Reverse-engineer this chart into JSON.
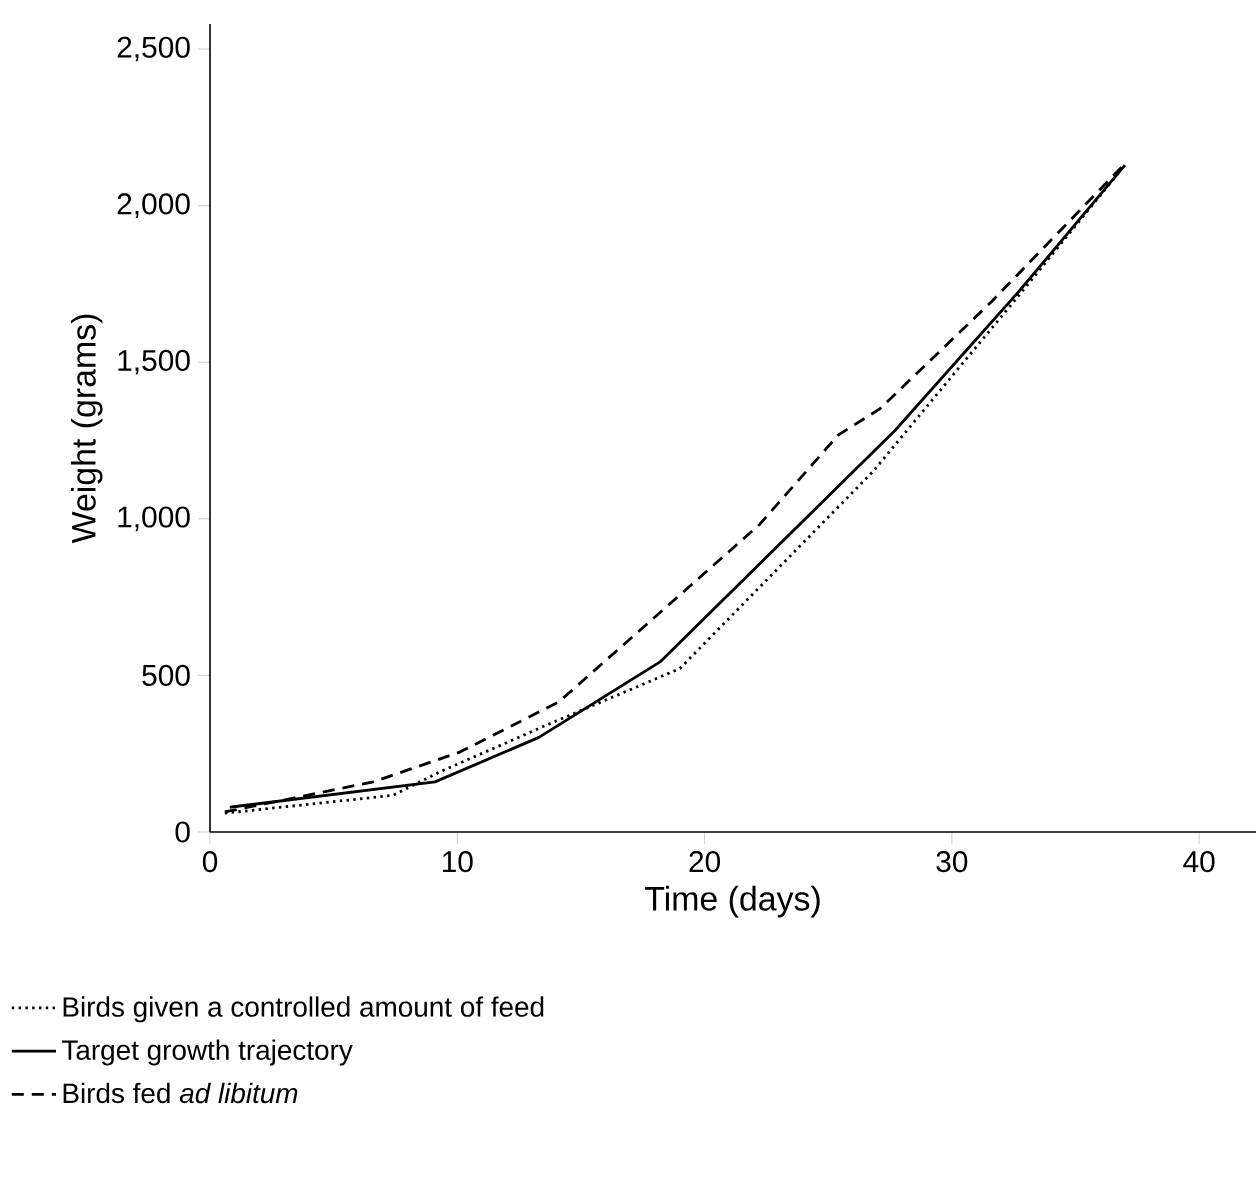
{
  "chart_data": {
    "type": "line",
    "xlabel": "Time (days)",
    "ylabel": "Weight (grams)",
    "xlim": [
      0,
      42.3
    ],
    "ylim": [
      0,
      2580
    ],
    "xticks": [
      0,
      10,
      20,
      30,
      40
    ],
    "yticks": [
      {
        "value": 0,
        "label": "0"
      },
      {
        "value": 500,
        "label": "500"
      },
      {
        "value": 1000,
        "label": "1,000"
      },
      {
        "value": 1500,
        "label": "1,500"
      },
      {
        "value": 2000,
        "label": "2,000"
      },
      {
        "value": 2500,
        "label": "2,500"
      }
    ],
    "grid": false,
    "legend": "bottom",
    "marker": "none",
    "series": [
      {
        "name": "Birds given a controlled amount of feed",
        "color": "#000000",
        "line_style": "dotted",
        "x": [
          0.6,
          7.4,
          9.3,
          13.6,
          17.4,
          19.0,
          26.8,
          32.5,
          36.8
        ],
        "values": [
          60,
          117,
          192,
          341,
          468,
          522,
          1150,
          1693,
          2110
        ]
      },
      {
        "name": "Target growth trajectory",
        "color": "#000000",
        "line_style": "solid",
        "x": [
          0.8,
          9.1,
          13.3,
          18.2,
          27.7,
          32.7,
          37.0
        ],
        "values": [
          79,
          160,
          302,
          543,
          1282,
          1725,
          2129
        ]
      },
      {
        "name": "Birds fed *ad libitum*",
        "color": "#000000",
        "line_style": "dashed",
        "x": [
          0.6,
          6.6,
          10.1,
          14.1,
          22.2,
          25.4,
          27.1,
          31.6,
          37.0
        ],
        "values": [
          64,
          160,
          255,
          415,
          980,
          1267,
          1352,
          1693,
          2134
        ]
      }
    ]
  }
}
